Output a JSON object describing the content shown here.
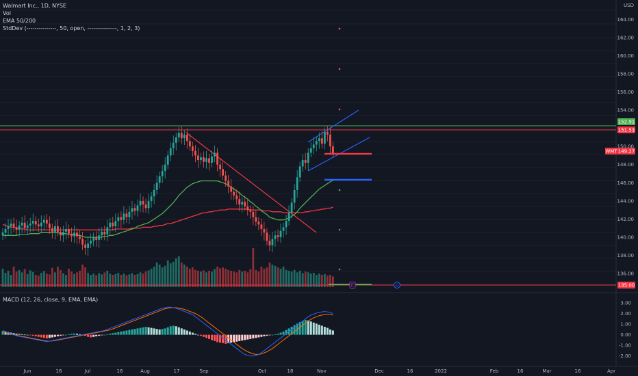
{
  "legend": {
    "symbol": "Walmart Inc., 1D, NYSE",
    "vol": "Vol",
    "ema": "EMA 50/200",
    "stddev": "StdDev (---------------, 50, open, ---------------, 1, 2, 3)"
  },
  "macd_legend": "MACD (12, 26, close, 9, EMA, EMA)",
  "price_axis": {
    "currency": "USD",
    "ticks": [
      "164.00",
      "162.00",
      "160.00",
      "158.00",
      "156.00",
      "154.00",
      "150.00",
      "148.00",
      "146.00",
      "144.00",
      "142.00",
      "140.00",
      "138.00",
      "136.00"
    ]
  },
  "macd_axis": {
    "ticks": [
      "3.00",
      "2.00",
      "1.00",
      "0.00",
      "-1.00",
      "-2.00"
    ]
  },
  "time_axis": [
    "Jun",
    "16",
    "Jul",
    "16",
    "Aug",
    "17",
    "Sep",
    "Oct",
    "18",
    "Nov",
    "Dec",
    "16",
    "2022",
    "Feb",
    "16",
    "Mar",
    "16",
    "Apr"
  ],
  "price_tags": {
    "green_line": "152.91",
    "red_line": "151.53",
    "last_symbol": "WMT",
    "last_price": "149.27",
    "bottom_line": "135.00"
  },
  "event_markers": [
    "E",
    "D"
  ],
  "colors": {
    "background": "#131722",
    "up": "#26a69a",
    "down": "#ef5350",
    "ema50": "#4caf50",
    "ema200": "#f23645",
    "channel": "#2962ff",
    "macd": "#2962ff",
    "signal": "#ff6d00"
  },
  "chart_data": {
    "type": "candlestick",
    "title": "Walmart Inc., 1D, NYSE",
    "y_range": [
      134.5,
      165
    ],
    "closes": [
      140.5,
      140.9,
      141.2,
      141.5,
      141.1,
      140.8,
      141.3,
      141.6,
      141.0,
      141.3,
      141.5,
      141.8,
      141.4,
      141.2,
      141.6,
      141.9,
      141.5,
      141.0,
      140.6,
      141.2,
      140.6,
      140.2,
      140.6,
      140.9,
      140.4,
      140.1,
      140.5,
      140.1,
      139.8,
      139.2,
      138.8,
      139.3,
      139.6,
      140.0,
      139.7,
      140.2,
      140.6,
      140.3,
      141.1,
      141.6,
      141.2,
      141.8,
      142.2,
      141.9,
      142.6,
      142.2,
      142.8,
      143.2,
      142.9,
      143.5,
      144.0,
      143.6,
      143.2,
      144.0,
      144.5,
      145.2,
      146.0,
      146.7,
      147.3,
      148.0,
      149.0,
      149.8,
      150.4,
      151.0,
      151.5,
      150.9,
      151.3,
      150.6,
      150.0,
      149.5,
      149.0,
      148.5,
      148.8,
      148.3,
      148.7,
      148.2,
      148.9,
      149.3,
      148.0,
      147.5,
      146.8,
      146.2,
      145.6,
      145.0,
      144.6,
      144.2,
      143.6,
      143.9,
      143.4,
      143.0,
      142.8,
      142.2,
      141.7,
      141.4,
      140.9,
      140.5,
      139.6,
      139.1,
      139.8,
      140.2,
      140.0,
      140.7,
      141.1,
      141.8,
      142.7,
      143.8,
      145.2,
      146.6,
      147.8,
      148.5,
      148.2,
      149.3,
      149.8,
      150.2,
      150.6,
      150.9,
      150.3,
      151.6,
      151.3,
      150.0,
      149.27
    ],
    "ema50": [
      140.2,
      140.2,
      140.2,
      140.2,
      140.2,
      140.2,
      140.3,
      140.3,
      140.3,
      140.3,
      140.4,
      140.4,
      140.4,
      140.4,
      140.5,
      140.5,
      140.5,
      140.5,
      140.5,
      140.5,
      140.5,
      140.4,
      140.4,
      140.4,
      140.3,
      140.3,
      140.3,
      140.2,
      140.2,
      140.1,
      140.0,
      140.0,
      140.0,
      140.0,
      140.0,
      140.0,
      140.0,
      140.1,
      140.1,
      140.2,
      140.2,
      140.3,
      140.4,
      140.5,
      140.6,
      140.7,
      140.8,
      140.9,
      141.0,
      141.2,
      141.3,
      141.4,
      141.5,
      141.6,
      141.8,
      142.0,
      142.2,
      142.4,
      142.6,
      142.9,
      143.2,
      143.5,
      143.8,
      144.2,
      144.6,
      144.9,
      145.2,
      145.5,
      145.7,
      145.9,
      146.0,
      146.1,
      146.2,
      146.2,
      146.2,
      146.2,
      146.2,
      146.2,
      146.2,
      146.1,
      146.0,
      145.9,
      145.7,
      145.5,
      145.3,
      145.1,
      144.9,
      144.6,
      144.4,
      144.2,
      143.9,
      143.7,
      143.4,
      143.2,
      142.9,
      142.7,
      142.5,
      142.2,
      142.1,
      142.0,
      141.9,
      141.9,
      141.9,
      142.0,
      142.1,
      142.3,
      142.5,
      142.8,
      143.2,
      143.5,
      143.8,
      144.1,
      144.4,
      144.7,
      145.0,
      145.3,
      145.5,
      145.7,
      145.9,
      146.1,
      146.3
    ],
    "ema200": [
      141.4,
      141.3,
      141.2,
      141.1,
      141.1,
      141.0,
      141.0,
      140.9,
      140.9,
      140.8,
      140.8,
      140.8,
      140.8,
      140.8,
      140.8,
      140.8,
      140.8,
      140.8,
      140.8,
      140.8,
      140.8,
      140.8,
      140.8,
      140.8,
      140.8,
      140.8,
      140.8,
      140.8,
      140.8,
      140.8,
      140.8,
      140.8,
      140.8,
      140.8,
      140.8,
      140.8,
      140.8,
      140.8,
      140.8,
      140.8,
      140.8,
      140.9,
      140.9,
      140.9,
      140.9,
      140.9,
      140.9,
      141.0,
      141.0,
      141.0,
      141.0,
      141.1,
      141.1,
      141.1,
      141.1,
      141.2,
      141.2,
      141.3,
      141.3,
      141.4,
      141.5,
      141.5,
      141.6,
      141.7,
      141.8,
      141.9,
      142.0,
      142.1,
      142.2,
      142.3,
      142.4,
      142.5,
      142.6,
      142.7,
      142.7,
      142.8,
      142.8,
      142.9,
      142.9,
      143.0,
      143.0,
      143.0,
      143.1,
      143.1,
      143.1,
      143.1,
      143.1,
      143.1,
      143.1,
      143.1,
      143.0,
      143.0,
      143.0,
      143.0,
      143.0,
      142.9,
      142.9,
      142.9,
      142.8,
      142.8,
      142.8,
      142.8,
      142.7,
      142.7,
      142.7,
      142.7,
      142.7,
      142.7,
      142.7,
      142.7,
      142.8,
      142.8,
      142.9,
      142.9,
      143.0,
      143.0,
      143.1,
      143.1,
      143.2,
      143.2,
      143.3
    ],
    "volume": [
      0.45,
      0.35,
      0.4,
      0.3,
      0.5,
      0.38,
      0.42,
      0.36,
      0.44,
      0.32,
      0.41,
      0.37,
      0.3,
      0.28,
      0.35,
      0.39,
      0.33,
      0.31,
      0.47,
      0.36,
      0.5,
      0.42,
      0.34,
      0.3,
      0.45,
      0.38,
      0.32,
      0.36,
      0.4,
      0.55,
      0.48,
      0.35,
      0.3,
      0.33,
      0.29,
      0.34,
      0.31,
      0.36,
      0.4,
      0.33,
      0.3,
      0.32,
      0.35,
      0.3,
      0.33,
      0.29,
      0.31,
      0.34,
      0.3,
      0.32,
      0.36,
      0.33,
      0.38,
      0.41,
      0.45,
      0.5,
      0.6,
      0.55,
      0.48,
      0.52,
      0.65,
      0.58,
      0.62,
      0.7,
      0.75,
      0.6,
      0.55,
      0.5,
      0.45,
      0.48,
      0.42,
      0.4,
      0.38,
      0.41,
      0.36,
      0.4,
      0.38,
      0.44,
      0.5,
      0.46,
      0.48,
      0.45,
      0.42,
      0.4,
      0.38,
      0.36,
      0.42,
      0.38,
      0.4,
      0.36,
      0.44,
      0.95,
      0.42,
      0.38,
      0.5,
      0.45,
      0.48,
      0.6,
      0.55,
      0.52,
      0.48,
      0.45,
      0.5,
      0.42,
      0.4,
      0.38,
      0.42,
      0.36,
      0.4,
      0.34,
      0.38,
      0.36,
      0.33,
      0.35,
      0.3,
      0.33,
      0.3,
      0.32,
      0.28,
      0.3,
      0.26
    ],
    "macd_hist": [
      0.35,
      0.3,
      0.25,
      0.2,
      0.15,
      0.1,
      0.08,
      0.05,
      0.02,
      0.0,
      -0.05,
      -0.1,
      -0.15,
      -0.2,
      -0.25,
      -0.3,
      -0.35,
      -0.3,
      -0.25,
      -0.2,
      -0.15,
      -0.1,
      -0.05,
      0.0,
      0.05,
      0.1,
      0.12,
      0.1,
      0.05,
      0.0,
      -0.1,
      -0.2,
      -0.25,
      -0.2,
      -0.15,
      -0.1,
      -0.05,
      0.0,
      0.05,
      0.1,
      0.15,
      0.2,
      0.25,
      0.3,
      0.35,
      0.4,
      0.45,
      0.5,
      0.55,
      0.6,
      0.65,
      0.7,
      0.75,
      0.7,
      0.65,
      0.6,
      0.55,
      0.5,
      0.55,
      0.6,
      0.7,
      0.8,
      0.85,
      0.8,
      0.7,
      0.6,
      0.5,
      0.4,
      0.3,
      0.2,
      0.1,
      0.0,
      -0.1,
      -0.2,
      -0.3,
      -0.4,
      -0.5,
      -0.6,
      -0.7,
      -0.75,
      -0.8,
      -0.85,
      -0.8,
      -0.75,
      -0.7,
      -0.65,
      -0.6,
      -0.55,
      -0.5,
      -0.45,
      -0.4,
      -0.35,
      -0.3,
      -0.25,
      -0.2,
      -0.15,
      -0.1,
      -0.05,
      0.0,
      0.05,
      0.1,
      0.2,
      0.3,
      0.45,
      0.6,
      0.75,
      0.9,
      1.05,
      1.2,
      1.3,
      1.4,
      1.35,
      1.25,
      1.15,
      1.05,
      0.95,
      0.85,
      0.75,
      0.65,
      0.5,
      0.4
    ],
    "macd_line": [
      0.4,
      0.3,
      0.2,
      0.1,
      0.0,
      -0.1,
      -0.15,
      -0.2,
      -0.25,
      -0.3,
      -0.35,
      -0.4,
      -0.45,
      -0.5,
      -0.55,
      -0.6,
      -0.65,
      -0.6,
      -0.55,
      -0.5,
      -0.45,
      -0.4,
      -0.35,
      -0.3,
      -0.25,
      -0.2,
      -0.15,
      -0.1,
      -0.05,
      0.0,
      0.05,
      0.1,
      0.15,
      0.2,
      0.25,
      0.3,
      0.35,
      0.4,
      0.5,
      0.6,
      0.7,
      0.8,
      0.9,
      1.0,
      1.1,
      1.2,
      1.3,
      1.4,
      1.5,
      1.6,
      1.7,
      1.8,
      1.9,
      2.0,
      2.1,
      2.2,
      2.3,
      2.4,
      2.5,
      2.55,
      2.6,
      2.6,
      2.55,
      2.5,
      2.4,
      2.3,
      2.2,
      2.1,
      2.0,
      1.9,
      1.7,
      1.5,
      1.3,
      1.1,
      0.9,
      0.7,
      0.5,
      0.3,
      0.1,
      -0.1,
      -0.3,
      -0.5,
      -0.7,
      -0.9,
      -1.1,
      -1.3,
      -1.5,
      -1.7,
      -1.85,
      -1.95,
      -2.0,
      -2.0,
      -1.95,
      -1.85,
      -1.7,
      -1.5,
      -1.3,
      -1.1,
      -0.9,
      -0.7,
      -0.5,
      -0.3,
      -0.1,
      0.1,
      0.3,
      0.5,
      0.7,
      0.9,
      1.1,
      1.3,
      1.5,
      1.7,
      1.85,
      1.95,
      2.05,
      2.1,
      2.15,
      2.2,
      2.15,
      2.1,
      2.0
    ],
    "signal_line": [
      0.2,
      0.15,
      0.1,
      0.05,
      0.0,
      -0.05,
      -0.1,
      -0.15,
      -0.2,
      -0.25,
      -0.3,
      -0.35,
      -0.4,
      -0.45,
      -0.5,
      -0.55,
      -0.6,
      -0.6,
      -0.58,
      -0.55,
      -0.5,
      -0.45,
      -0.4,
      -0.35,
      -0.3,
      -0.25,
      -0.2,
      -0.15,
      -0.1,
      -0.05,
      0.0,
      0.05,
      0.1,
      0.15,
      0.2,
      0.25,
      0.3,
      0.35,
      0.4,
      0.45,
      0.55,
      0.65,
      0.75,
      0.85,
      0.95,
      1.05,
      1.15,
      1.25,
      1.35,
      1.45,
      1.55,
      1.65,
      1.75,
      1.85,
      1.95,
      2.05,
      2.15,
      2.25,
      2.35,
      2.45,
      2.5,
      2.55,
      2.55,
      2.55,
      2.5,
      2.45,
      2.4,
      2.3,
      2.2,
      2.1,
      2.0,
      1.85,
      1.7,
      1.5,
      1.3,
      1.1,
      0.9,
      0.7,
      0.5,
      0.3,
      0.1,
      -0.1,
      -0.3,
      -0.5,
      -0.7,
      -0.9,
      -1.1,
      -1.3,
      -1.45,
      -1.6,
      -1.7,
      -1.8,
      -1.85,
      -1.85,
      -1.8,
      -1.7,
      -1.6,
      -1.45,
      -1.3,
      -1.1,
      -0.9,
      -0.7,
      -0.5,
      -0.3,
      -0.1,
      0.1,
      0.3,
      0.5,
      0.7,
      0.9,
      1.1,
      1.3,
      1.45,
      1.6,
      1.7,
      1.8,
      1.85,
      1.9,
      1.9,
      1.9,
      1.85
    ]
  }
}
